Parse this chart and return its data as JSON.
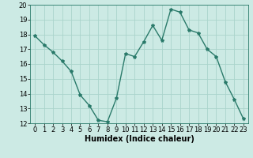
{
  "x": [
    0,
    1,
    2,
    3,
    4,
    5,
    6,
    7,
    8,
    9,
    10,
    11,
    12,
    13,
    14,
    15,
    16,
    17,
    18,
    19,
    20,
    21,
    22,
    23
  ],
  "y": [
    17.9,
    17.3,
    16.8,
    16.2,
    15.5,
    13.9,
    13.2,
    12.2,
    12.1,
    13.7,
    16.7,
    16.5,
    17.5,
    18.6,
    17.6,
    19.7,
    19.5,
    18.3,
    18.1,
    17.0,
    16.5,
    14.8,
    13.6,
    12.3
  ],
  "line_color": "#2a7a6a",
  "marker": "*",
  "marker_size": 3,
  "bg_color": "#cceae4",
  "grid_color": "#aad4cc",
  "xlabel": "Humidex (Indice chaleur)",
  "ylim": [
    12,
    20
  ],
  "xlim": [
    -0.5,
    23.5
  ],
  "yticks": [
    12,
    13,
    14,
    15,
    16,
    17,
    18,
    19,
    20
  ],
  "xticks": [
    0,
    1,
    2,
    3,
    4,
    5,
    6,
    7,
    8,
    9,
    10,
    11,
    12,
    13,
    14,
    15,
    16,
    17,
    18,
    19,
    20,
    21,
    22,
    23
  ],
  "xlabel_fontsize": 7,
  "tick_fontsize": 6,
  "line_width": 1.0
}
